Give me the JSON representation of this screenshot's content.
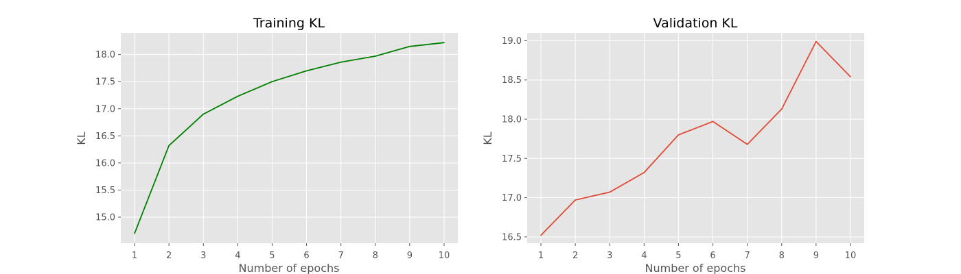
{
  "chart_data": [
    {
      "type": "line",
      "title": "Training KL",
      "xlabel": "Number of epochs",
      "ylabel": "KL",
      "x": [
        1,
        2,
        3,
        4,
        5,
        6,
        7,
        8,
        9,
        10
      ],
      "xticks": [
        1,
        2,
        3,
        4,
        5,
        6,
        7,
        8,
        9,
        10
      ],
      "xlim": [
        0.6,
        10.4
      ],
      "yticks": [
        "15.0",
        "15.5",
        "16.0",
        "16.5",
        "17.0",
        "17.5",
        "18.0"
      ],
      "ylim": [
        14.52,
        18.4
      ],
      "grid": true,
      "series": [
        {
          "color": "#008000",
          "values": [
            14.7,
            16.32,
            16.9,
            17.23,
            17.5,
            17.7,
            17.86,
            17.97,
            18.15,
            18.22
          ]
        }
      ]
    },
    {
      "type": "line",
      "title": "Validation KL",
      "xlabel": "Number of epochs",
      "ylabel": "KL",
      "x": [
        1,
        2,
        3,
        4,
        5,
        6,
        7,
        8,
        9,
        10
      ],
      "xticks": [
        1,
        2,
        3,
        4,
        5,
        6,
        7,
        8,
        9,
        10
      ],
      "xlim": [
        0.6,
        10.4
      ],
      "yticks": [
        "16.5",
        "17.0",
        "17.5",
        "18.0",
        "18.5",
        "19.0"
      ],
      "ylim": [
        16.42,
        19.1
      ],
      "grid": true,
      "series": [
        {
          "color": "#e24a33",
          "values": [
            16.52,
            16.97,
            17.07,
            17.32,
            17.8,
            17.97,
            17.68,
            18.13,
            18.99,
            18.54
          ]
        }
      ]
    }
  ]
}
